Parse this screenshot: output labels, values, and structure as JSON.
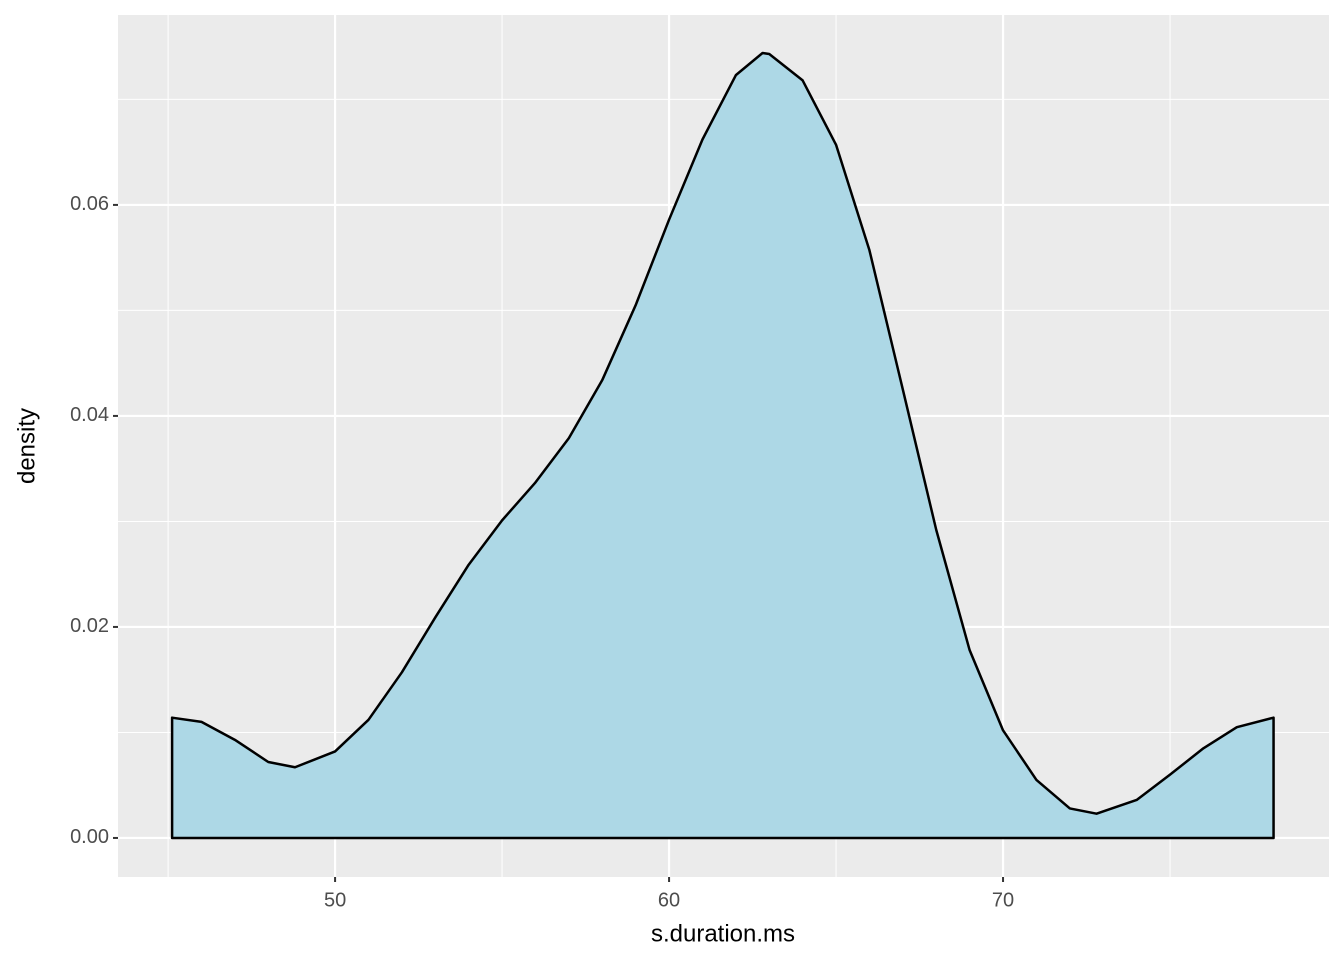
{
  "chart_data": {
    "type": "area",
    "x_label": "s.duration.ms",
    "y_label": "density",
    "x": [
      45.12,
      46,
      47,
      48,
      48.8,
      50,
      51,
      52,
      53,
      54,
      55,
      56,
      57,
      58,
      59,
      60,
      61,
      62,
      62.8,
      63,
      64,
      65,
      66,
      67,
      68,
      69,
      70,
      71,
      72,
      72.8,
      74,
      75,
      76,
      77,
      78.1
    ],
    "values": [
      0.0114,
      0.011,
      0.0093,
      0.0072,
      0.0067,
      0.0082,
      0.0112,
      0.0157,
      0.0209,
      0.0259,
      0.0301,
      0.0337,
      0.0379,
      0.0434,
      0.0505,
      0.0586,
      0.0662,
      0.0723,
      0.0744,
      0.0743,
      0.0718,
      0.0657,
      0.0557,
      0.0425,
      0.0292,
      0.0178,
      0.0102,
      0.0055,
      0.0028,
      0.0023,
      0.0036,
      0.006,
      0.0085,
      0.0105,
      0.0114
    ],
    "color": "#add8e6",
    "line_color": "#000000",
    "xlim": [
      43.5,
      79.76
    ],
    "ylim": [
      -0.0037,
      0.078
    ],
    "xticks": [
      50,
      60,
      70
    ],
    "yticks": [
      {
        "value": 0,
        "label": "0.00"
      },
      {
        "value": 0.02,
        "label": "0.02"
      },
      {
        "value": 0.04,
        "label": "0.04"
      },
      {
        "value": 0.06,
        "label": "0.06"
      }
    ],
    "x_minor_grid": [
      45,
      55,
      65,
      75
    ],
    "y_minor_grid": [
      0.01,
      0.03,
      0.05,
      0.07
    ],
    "grid": true
  }
}
